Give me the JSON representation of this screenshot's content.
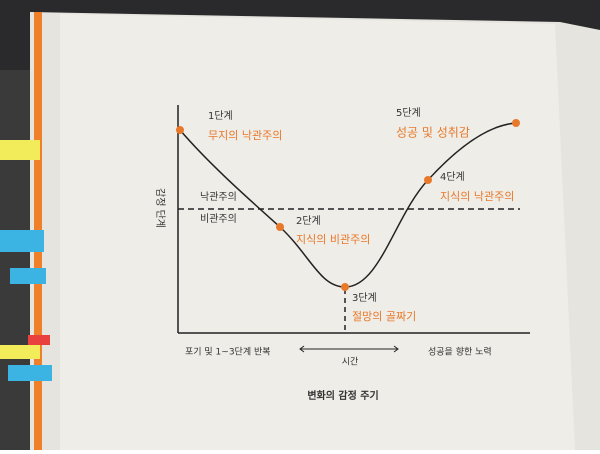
{
  "diagram": {
    "y_axis_label": "감정 단계",
    "levels": {
      "optimism": "낙관주의",
      "pessimism": "비관주의"
    },
    "stages": [
      {
        "step": "1단계",
        "label": "무지의 낙관주의"
      },
      {
        "step": "2단계",
        "label": "지식의 비관주의"
      },
      {
        "step": "3단계",
        "label": "절망의 골짜기"
      },
      {
        "step": "4단계",
        "label": "지식의 낙관주의"
      },
      {
        "step": "5단계",
        "label": "성공 및 성취감"
      }
    ],
    "x_axis": {
      "left": "포기 및 1~3단계 반복",
      "center": "시간",
      "right": "성공을 향한 노력"
    },
    "caption": "변화의 감정 주기"
  }
}
